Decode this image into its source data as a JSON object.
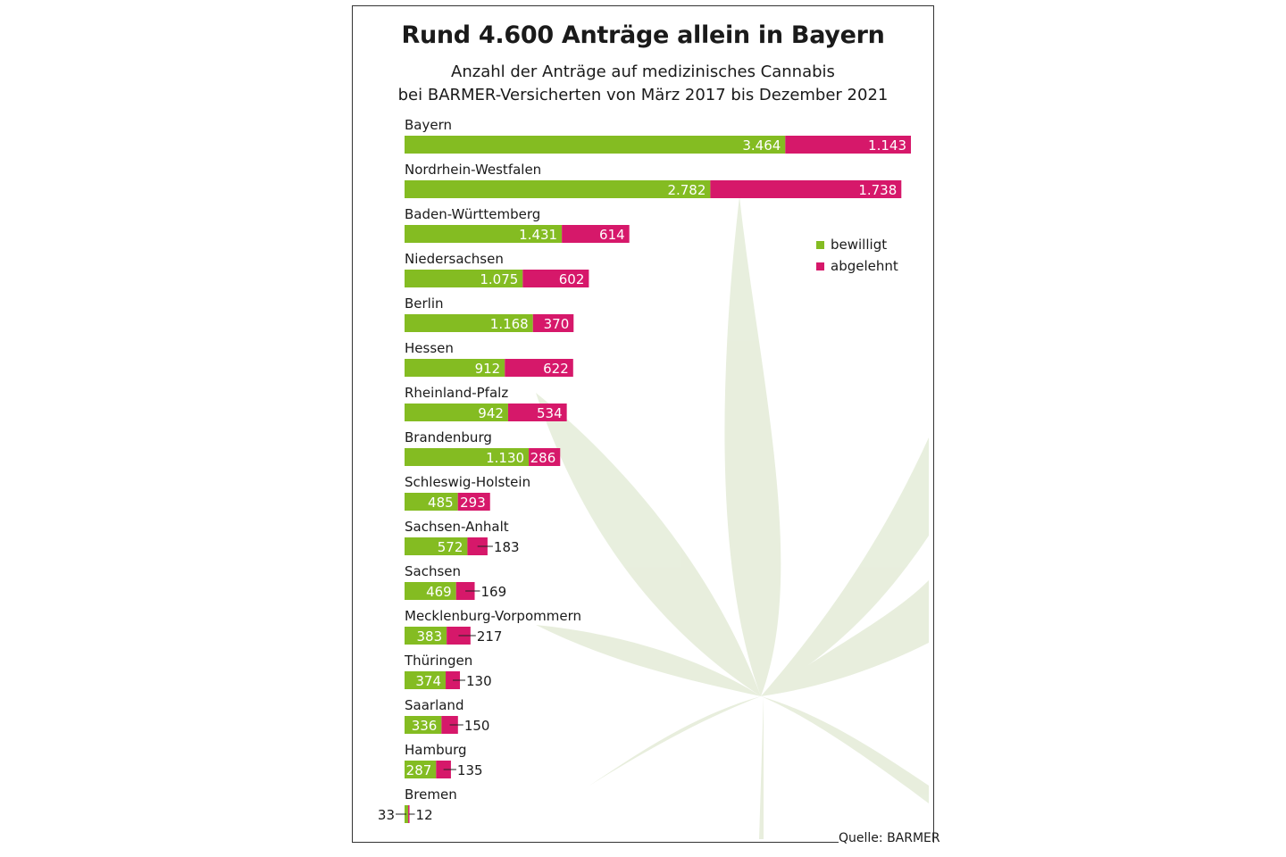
{
  "title": "Rund 4.600 Anträge allein in Bayern",
  "subtitle_line1": "Anzahl der Anträge auf medizinisches Cannabis",
  "subtitle_line2": "bei BARMER-Versicherten von März 2017 bis Dezember 2021",
  "source": "Quelle: BARMER",
  "colors": {
    "bewilligt": "#84bc22",
    "abgelehnt": "#d6186a"
  },
  "chart_data": {
    "type": "bar",
    "orientation": "horizontal",
    "stacked": true,
    "grid": false,
    "legend_position": "top-right",
    "title": "Rund 4.600 Anträge allein in Bayern",
    "categories": [
      "Bayern",
      "Nordrhein-Westfalen",
      "Baden-Württemberg",
      "Niedersachsen",
      "Berlin",
      "Hessen",
      "Rheinland-Pfalz",
      "Brandenburg",
      "Schleswig-Holstein",
      "Sachsen-Anhalt",
      "Sachsen",
      "Mecklenburg-Vorpommern",
      "Thüringen",
      "Saarland",
      "Hamburg",
      "Bremen"
    ],
    "series": [
      {
        "name": "bewilligt",
        "values": [
          3464,
          2782,
          1431,
          1075,
          1168,
          912,
          942,
          1130,
          485,
          572,
          469,
          383,
          374,
          336,
          287,
          33
        ],
        "labels": [
          "3.464",
          "2.782",
          "1.431",
          "1.075",
          "1.168",
          "912",
          "942",
          "1.130",
          "485",
          "572",
          "469",
          "383",
          "374",
          "336",
          "287",
          "33"
        ]
      },
      {
        "name": "abgelehnt",
        "values": [
          1143,
          1738,
          614,
          602,
          370,
          622,
          534,
          286,
          293,
          183,
          169,
          217,
          130,
          150,
          135,
          12
        ],
        "labels": [
          "1.143",
          "1.738",
          "614",
          "602",
          "370",
          "622",
          "534",
          "286",
          "293",
          "183",
          "169",
          "217",
          "130",
          "150",
          "135",
          "12"
        ]
      }
    ]
  }
}
